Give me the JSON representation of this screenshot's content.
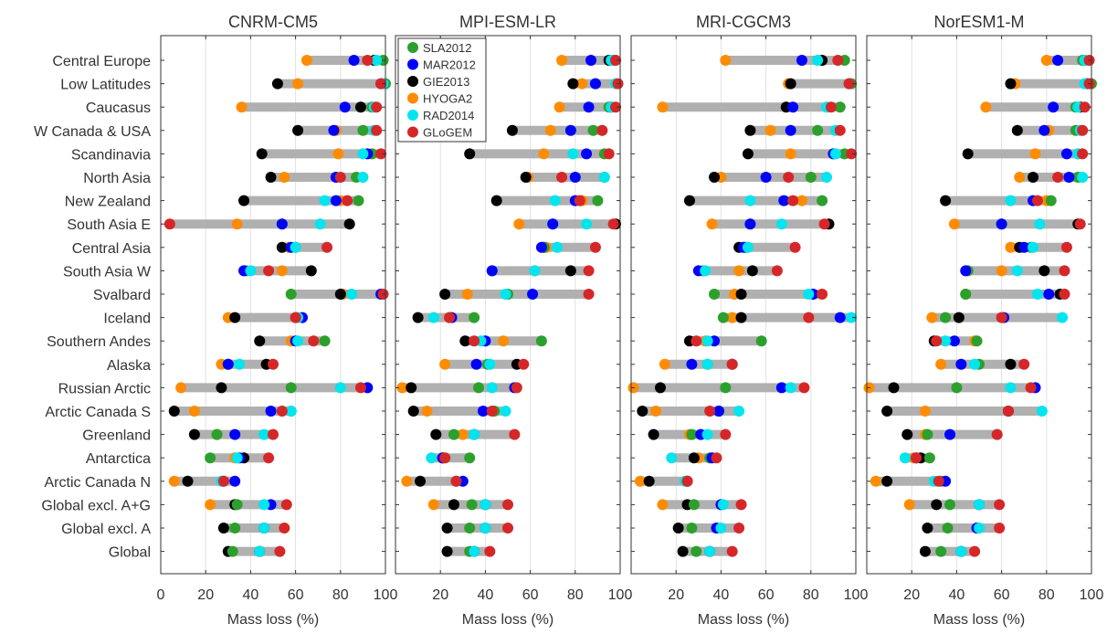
{
  "regions": [
    "Central Europe",
    "Low Latitudes",
    "Caucasus",
    "W Canada & USA",
    "Scandinavia",
    "North Asia",
    "New Zealand",
    "South Asia E",
    "Central Asia",
    "South Asia W",
    "Svalbard",
    "Iceland",
    "Southern Andes",
    "Alaska",
    "Russian Arctic",
    "Arctic Canada S",
    "Greenland",
    "Antarctica",
    "Arctic Canada N",
    "Global excl. A+G",
    "Global excl. A",
    "Global"
  ],
  "legend": {
    "items": [
      {
        "key": "SLA",
        "label": "SLA2012",
        "color": "#2ca02c"
      },
      {
        "key": "MAR",
        "label": "MAR2012",
        "color": "#0000ff"
      },
      {
        "key": "GIE",
        "label": "GIE2013",
        "color": "#000000"
      },
      {
        "key": "HYO",
        "label": "HYOGA2",
        "color": "#ff8c00"
      },
      {
        "key": "RAD",
        "label": "RAD2014",
        "color": "#00e5ee"
      },
      {
        "key": "GLO",
        "label": "GLoGEM",
        "color": "#d62728"
      }
    ]
  },
  "style": {
    "range_bar_color": "#b0b0b0",
    "grid_color": "#e2e2e2",
    "axis_color": "#333333"
  },
  "chart_data": [
    {
      "type": "scatter",
      "title": "CNRM-CM5",
      "xlabel": "Mass loss (%)",
      "xlim": [
        0,
        100
      ],
      "xticks": [
        0,
        20,
        40,
        60,
        80,
        100
      ],
      "grid": "vertical",
      "categories_ref": "regions",
      "points": [
        {
          "SLA": 99,
          "MAR": 86,
          "GIE": 95,
          "HYO": 65,
          "RAD": 96,
          "GLO": 92
        },
        {
          "SLA": 100,
          "MAR": 98,
          "GIE": 52,
          "HYO": 61,
          "RAD": 99,
          "GLO": 98
        },
        {
          "SLA": 94,
          "MAR": 82,
          "GIE": 89,
          "HYO": 36,
          "RAD": 95,
          "GLO": 96
        },
        {
          "SLA": 90,
          "MAR": 77,
          "GIE": 61,
          "HYO": 78,
          "RAD": 95,
          "GLO": 96
        },
        {
          "SLA": 94,
          "MAR": 92,
          "GIE": 45,
          "HYO": 79,
          "RAD": 90,
          "GLO": 98
        },
        {
          "SLA": 87,
          "MAR": 78,
          "GIE": 49,
          "HYO": 55,
          "RAD": 90,
          "GLO": 80
        },
        {
          "SLA": 88,
          "MAR": 78,
          "GIE": 37,
          "HYO": 80,
          "RAD": 73,
          "GLO": 83
        },
        {
          "SLA": 54,
          "MAR": 54,
          "GIE": 84,
          "HYO": 34,
          "RAD": 71,
          "GLO": 4
        },
        {
          "SLA": 60,
          "MAR": 58,
          "GIE": 54,
          "HYO": 57,
          "RAD": 60,
          "GLO": 74
        },
        {
          "SLA": 38,
          "MAR": 37,
          "GIE": 67,
          "HYO": 54,
          "RAD": 40,
          "GLO": 48
        },
        {
          "SLA": 58,
          "MAR": 98,
          "GIE": 80,
          "HYO": 81,
          "RAD": 85,
          "GLO": 99
        },
        {
          "SLA": 60,
          "MAR": 63,
          "GIE": 33,
          "HYO": 30,
          "RAD": 61,
          "GLO": 60
        },
        {
          "SLA": 73,
          "MAR": 60,
          "GIE": 44,
          "HYO": 58,
          "RAD": 61,
          "GLO": 68
        },
        {
          "SLA": 30,
          "MAR": 30,
          "GIE": 47,
          "HYO": 27,
          "RAD": 35,
          "GLO": 50
        },
        {
          "SLA": 58,
          "MAR": 92,
          "GIE": 27,
          "HYO": 9,
          "RAD": 80,
          "GLO": 89
        },
        {
          "SLA": 58,
          "MAR": 49,
          "GIE": 6,
          "HYO": 15,
          "RAD": 58,
          "GLO": 54
        },
        {
          "SLA": 25,
          "MAR": 33,
          "GIE": 15,
          "HYO": 25,
          "RAD": 46,
          "GLO": 50
        },
        {
          "SLA": 22,
          "MAR": 35,
          "GIE": 37,
          "HYO": 33,
          "RAD": 34,
          "GLO": 48
        },
        {
          "SLA": 28,
          "MAR": 33,
          "GIE": 12,
          "HYO": 6,
          "RAD": 27,
          "GLO": 28
        },
        {
          "SLA": 34,
          "MAR": 49,
          "GIE": 33,
          "HYO": 22,
          "RAD": 46,
          "GLO": 56
        },
        {
          "SLA": 33,
          "MAR": 46,
          "GIE": 28,
          "HYO": 46,
          "RAD": 46,
          "GLO": 55
        },
        {
          "SLA": 32,
          "MAR": 44,
          "GIE": 30,
          "HYO": 44,
          "RAD": 44,
          "GLO": 53
        }
      ]
    },
    {
      "type": "scatter",
      "title": "MPI-ESM-LR",
      "xlabel": "Mass loss (%)",
      "xlim": [
        0,
        100
      ],
      "xticks": [
        20,
        40,
        60,
        80,
        100
      ],
      "grid": "vertical",
      "categories_ref": "regions",
      "points": [
        {
          "SLA": 97,
          "MAR": 87,
          "GIE": 95,
          "HYO": 74,
          "RAD": 96,
          "GLO": 98
        },
        {
          "SLA": 89,
          "MAR": 89,
          "GIE": 79,
          "HYO": 83,
          "RAD": 98,
          "GLO": 99
        },
        {
          "SLA": 95,
          "MAR": 86,
          "GIE": 96,
          "HYO": 73,
          "RAD": 96,
          "GLO": 98
        },
        {
          "SLA": 88,
          "MAR": 78,
          "GIE": 52,
          "HYO": 69,
          "RAD": 92,
          "GLO": 92
        },
        {
          "SLA": 93,
          "MAR": 85,
          "GIE": 33,
          "HYO": 66,
          "RAD": 79,
          "GLO": 95
        },
        {
          "SLA": 93,
          "MAR": 80,
          "GIE": 58,
          "HYO": 59,
          "RAD": 93,
          "GLO": 74
        },
        {
          "SLA": 90,
          "MAR": 80,
          "GIE": 45,
          "HYO": 83,
          "RAD": 71,
          "GLO": 82
        },
        {
          "SLA": 70,
          "MAR": 70,
          "GIE": 98,
          "HYO": 55,
          "RAD": 85,
          "GLO": 97
        },
        {
          "SLA": 66,
          "MAR": 65,
          "GIE": 66,
          "HYO": 67,
          "RAD": 72,
          "GLO": 89
        },
        {
          "SLA": 43,
          "MAR": 43,
          "GIE": 78,
          "HYO": 62,
          "RAD": 62,
          "GLO": 86
        },
        {
          "SLA": 50,
          "MAR": 61,
          "GIE": 22,
          "HYO": 32,
          "RAD": 49,
          "GLO": 86
        },
        {
          "SLA": 35,
          "MAR": 25,
          "GIE": 10,
          "HYO": 24,
          "RAD": 17,
          "GLO": 24
        },
        {
          "SLA": 65,
          "MAR": 40,
          "GIE": 31,
          "HYO": 48,
          "RAD": 38,
          "GLO": 35
        },
        {
          "SLA": 41,
          "MAR": 36,
          "GIE": 54,
          "HYO": 22,
          "RAD": 42,
          "GLO": 57
        },
        {
          "SLA": 37,
          "MAR": 53,
          "GIE": 7,
          "HYO": 3,
          "RAD": 43,
          "GLO": 54
        },
        {
          "SLA": 44,
          "MAR": 39,
          "GIE": 8,
          "HYO": 14,
          "RAD": 49,
          "GLO": 43
        },
        {
          "SLA": 26,
          "MAR": 35,
          "GIE": 18,
          "HYO": 30,
          "RAD": 35,
          "GLO": 53
        },
        {
          "SLA": 33,
          "MAR": 21,
          "GIE": 21,
          "HYO": 22,
          "RAD": 16,
          "GLO": 22
        },
        {
          "SLA": 27,
          "MAR": 30,
          "GIE": 11,
          "HYO": 5,
          "RAD": 27,
          "GLO": 27
        },
        {
          "SLA": 34,
          "MAR": 40,
          "GIE": 26,
          "HYO": 17,
          "RAD": 40,
          "GLO": 50
        },
        {
          "SLA": 33,
          "MAR": 40,
          "GIE": 23,
          "HYO": 40,
          "RAD": 40,
          "GLO": 50
        },
        {
          "SLA": 33,
          "MAR": 35,
          "GIE": 23,
          "HYO": 35,
          "RAD": 35,
          "GLO": 42
        }
      ]
    },
    {
      "type": "scatter",
      "title": "MRI-CGCM3",
      "xlabel": "Mass loss (%)",
      "xlim": [
        0,
        100
      ],
      "xticks": [
        20,
        40,
        60,
        80,
        100
      ],
      "grid": "vertical",
      "categories_ref": "regions",
      "points": [
        {
          "SLA": 95,
          "MAR": 76,
          "GIE": 85,
          "HYO": 42,
          "RAD": 83,
          "GLO": 92
        },
        {
          "SLA": 98,
          "MAR": 97,
          "GIE": 71,
          "HYO": 70,
          "RAD": 97,
          "GLO": 97
        },
        {
          "SLA": 93,
          "MAR": 72,
          "GIE": 69,
          "HYO": 14,
          "RAD": 87,
          "GLO": 89
        },
        {
          "SLA": 83,
          "MAR": 71,
          "GIE": 53,
          "HYO": 62,
          "RAD": 91,
          "GLO": 93
        },
        {
          "SLA": 95,
          "MAR": 90,
          "GIE": 52,
          "HYO": 71,
          "RAD": 91,
          "GLO": 98
        },
        {
          "SLA": 80,
          "MAR": 60,
          "GIE": 37,
          "HYO": 40,
          "RAD": 87,
          "GLO": 70
        },
        {
          "SLA": 85,
          "MAR": 68,
          "GIE": 26,
          "HYO": 76,
          "RAD": 53,
          "GLO": 72
        },
        {
          "SLA": 53,
          "MAR": 53,
          "GIE": 88,
          "HYO": 36,
          "RAD": 67,
          "GLO": 86
        },
        {
          "SLA": 51,
          "MAR": 50,
          "GIE": 48,
          "HYO": 51,
          "RAD": 52,
          "GLO": 73
        },
        {
          "SLA": 32,
          "MAR": 30,
          "GIE": 54,
          "HYO": 48,
          "RAD": 33,
          "GLO": 65
        },
        {
          "SLA": 37,
          "MAR": 81,
          "GIE": 49,
          "HYO": 46,
          "RAD": 79,
          "GLO": 85
        },
        {
          "SLA": 41,
          "MAR": 93,
          "GIE": 49,
          "HYO": 45,
          "RAD": 98,
          "GLO": 79
        },
        {
          "SLA": 58,
          "MAR": 37,
          "GIE": 26,
          "HYO": 33,
          "RAD": 34,
          "GLO": 29
        },
        {
          "SLA": 34,
          "MAR": 27,
          "GIE": 45,
          "HYO": 15,
          "RAD": 34,
          "GLO": 45
        },
        {
          "SLA": 42,
          "MAR": 67,
          "GIE": 13,
          "HYO": 1,
          "RAD": 71,
          "GLO": 77
        },
        {
          "SLA": 39,
          "MAR": 39,
          "GIE": 5,
          "HYO": 11,
          "RAD": 48,
          "GLO": 35
        },
        {
          "SLA": 27,
          "MAR": 31,
          "GIE": 10,
          "HYO": 26,
          "RAD": 34,
          "GLO": 42
        },
        {
          "SLA": 35,
          "MAR": 36,
          "GIE": 28,
          "HYO": 30,
          "RAD": 18,
          "GLO": 38
        },
        {
          "SLA": 25,
          "MAR": 25,
          "GIE": 8,
          "HYO": 4,
          "RAD": 24,
          "GLO": 25
        },
        {
          "SLA": 28,
          "MAR": 40,
          "GIE": 25,
          "HYO": 14,
          "RAD": 41,
          "GLO": 49
        },
        {
          "SLA": 27,
          "MAR": 38,
          "GIE": 21,
          "HYO": 38,
          "RAD": 40,
          "GLO": 48
        },
        {
          "SLA": 29,
          "MAR": 35,
          "GIE": 23,
          "HYO": 35,
          "RAD": 35,
          "GLO": 45
        }
      ]
    },
    {
      "type": "scatter",
      "title": "NorESM1-M",
      "xlabel": "Mass loss (%)",
      "xlim": [
        0,
        100
      ],
      "xticks": [
        20,
        40,
        60,
        80,
        100
      ],
      "grid": "vertical",
      "categories_ref": "regions",
      "points": [
        {
          "SLA": 96,
          "MAR": 85,
          "GIE": 97,
          "HYO": 80,
          "RAD": 97,
          "GLO": 99
        },
        {
          "SLA": 100,
          "MAR": 98,
          "GIE": 64,
          "HYO": 66,
          "RAD": 97,
          "GLO": 99
        },
        {
          "SLA": 93,
          "MAR": 83,
          "GIE": 95,
          "HYO": 53,
          "RAD": 94,
          "GLO": 97
        },
        {
          "SLA": 93,
          "MAR": 79,
          "GIE": 67,
          "HYO": 81,
          "RAD": 95,
          "GLO": 96
        },
        {
          "SLA": 94,
          "MAR": 89,
          "GIE": 45,
          "HYO": 75,
          "RAD": 94,
          "GLO": 96
        },
        {
          "SLA": 94,
          "MAR": 90,
          "GIE": 74,
          "HYO": 68,
          "RAD": 96,
          "GLO": 85
        },
        {
          "SLA": 82,
          "MAR": 74,
          "GIE": 35,
          "HYO": 80,
          "RAD": 64,
          "GLO": 76
        },
        {
          "SLA": 60,
          "MAR": 60,
          "GIE": 94,
          "HYO": 39,
          "RAD": 77,
          "GLO": 95
        },
        {
          "SLA": 73,
          "MAR": 70,
          "GIE": 68,
          "HYO": 64,
          "RAD": 74,
          "GLO": 89
        },
        {
          "SLA": 45,
          "MAR": 44,
          "GIE": 79,
          "HYO": 60,
          "RAD": 67,
          "GLO": 88
        },
        {
          "SLA": 44,
          "MAR": 81,
          "GIE": 86,
          "HYO": 44,
          "RAD": 76,
          "GLO": 88
        },
        {
          "SLA": 35,
          "MAR": 61,
          "GIE": 41,
          "HYO": 29,
          "RAD": 87,
          "GLO": 60
        },
        {
          "SLA": 49,
          "MAR": 39,
          "GIE": 30,
          "HYO": 48,
          "RAD": 35,
          "GLO": 31
        },
        {
          "SLA": 50,
          "MAR": 42,
          "GIE": 64,
          "HYO": 33,
          "RAD": 48,
          "GLO": 70
        },
        {
          "SLA": 40,
          "MAR": 75,
          "GIE": 12,
          "HYO": 1,
          "RAD": 64,
          "GLO": 73
        },
        {
          "SLA": 63,
          "MAR": 63,
          "GIE": 9,
          "HYO": 26,
          "RAD": 78,
          "GLO": 63
        },
        {
          "SLA": 27,
          "MAR": 37,
          "GIE": 18,
          "HYO": 26,
          "RAD": 58,
          "GLO": 58
        },
        {
          "SLA": 28,
          "MAR": 22,
          "GIE": 24,
          "HYO": 21,
          "RAD": 17,
          "GLO": 22
        },
        {
          "SLA": 33,
          "MAR": 35,
          "GIE": 9,
          "HYO": 4,
          "RAD": 30,
          "GLO": 32
        },
        {
          "SLA": 37,
          "MAR": 50,
          "GIE": 31,
          "HYO": 19,
          "RAD": 50,
          "GLO": 59
        },
        {
          "SLA": 36,
          "MAR": 49,
          "GIE": 27,
          "HYO": 49,
          "RAD": 50,
          "GLO": 59
        },
        {
          "SLA": 33,
          "MAR": 42,
          "GIE": 26,
          "HYO": 42,
          "RAD": 42,
          "GLO": 48
        }
      ]
    }
  ]
}
